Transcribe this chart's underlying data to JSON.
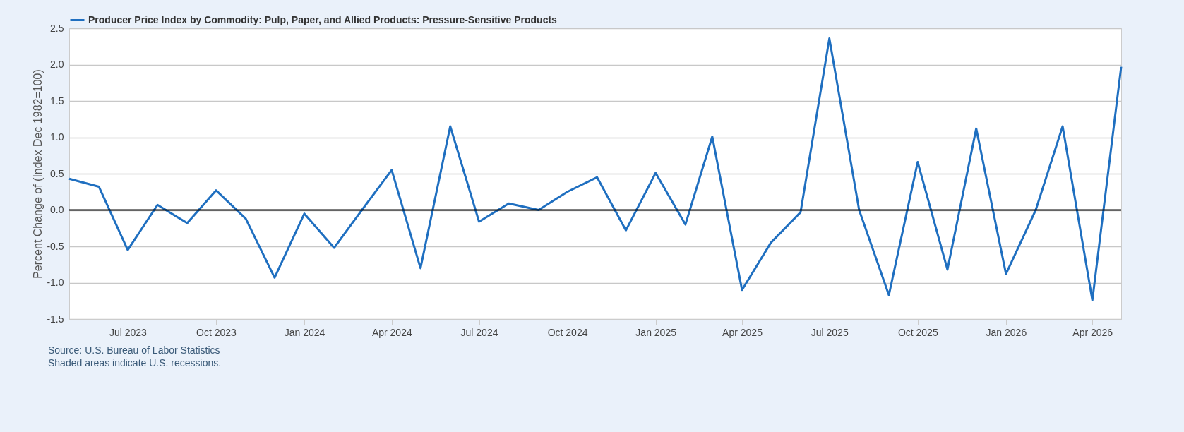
{
  "chart_data": {
    "type": "line",
    "ylabel": "Percent Change of (Index Dec 1982=100)",
    "x": [
      "2023-05",
      "2023-06",
      "2023-07",
      "2023-08",
      "2023-09",
      "2023-10",
      "2023-11",
      "2023-12",
      "2024-01",
      "2024-02",
      "2024-03",
      "2024-04",
      "2024-05",
      "2024-06",
      "2024-07",
      "2024-08",
      "2024-09",
      "2024-10",
      "2024-11",
      "2024-12",
      "2025-01",
      "2025-02",
      "2025-03",
      "2025-04",
      "2025-05",
      "2025-06",
      "2025-07",
      "2025-08",
      "2025-09",
      "2025-10",
      "2025-11",
      "2025-12",
      "2026-01",
      "2026-02",
      "2026-03",
      "2026-04",
      "2026-05"
    ],
    "series": [
      {
        "name": "Producer Price Index by Commodity: Pulp, Paper, and Allied Products: Pressure-Sensitive Products",
        "color": "#1f6fc0",
        "values": [
          0.43,
          0.32,
          -0.55,
          0.07,
          -0.18,
          0.27,
          -0.12,
          -0.93,
          -0.05,
          -0.52,
          0.0,
          0.55,
          -0.8,
          1.15,
          -0.16,
          0.09,
          0.0,
          0.25,
          0.45,
          -0.28,
          0.51,
          -0.2,
          1.01,
          -1.1,
          -0.45,
          -0.03,
          2.36,
          0.0,
          -1.17,
          0.66,
          -0.82,
          1.12,
          -0.88,
          0.0,
          1.15,
          -1.24,
          1.97
        ]
      }
    ],
    "xlim": [
      "2023-05",
      "2026-05"
    ],
    "xticks": [
      {
        "value": "2023-07",
        "label": "Jul 2023"
      },
      {
        "value": "2023-10",
        "label": "Oct 2023"
      },
      {
        "value": "2024-01",
        "label": "Jan 2024"
      },
      {
        "value": "2024-04",
        "label": "Apr 2024"
      },
      {
        "value": "2024-07",
        "label": "Jul 2024"
      },
      {
        "value": "2024-10",
        "label": "Oct 2024"
      },
      {
        "value": "2025-01",
        "label": "Jan 2025"
      },
      {
        "value": "2025-04",
        "label": "Apr 2025"
      },
      {
        "value": "2025-07",
        "label": "Jul 2025"
      },
      {
        "value": "2025-10",
        "label": "Oct 2025"
      },
      {
        "value": "2026-01",
        "label": "Jan 2026"
      },
      {
        "value": "2026-04",
        "label": "Apr 2026"
      }
    ],
    "ylim": [
      -1.5,
      2.5
    ],
    "yticks": [
      {
        "value": -1.5,
        "label": "-1.5"
      },
      {
        "value": -1,
        "label": "-1.0"
      },
      {
        "value": -0.5,
        "label": "-0.5"
      },
      {
        "value": 0,
        "label": "0.0"
      },
      {
        "value": 0.5,
        "label": "0.5"
      },
      {
        "value": 1,
        "label": "1.0"
      },
      {
        "value": 1.5,
        "label": "1.5"
      },
      {
        "value": 2,
        "label": "2.0"
      },
      {
        "value": 2.5,
        "label": "2.5"
      }
    ],
    "ref_lines": [
      {
        "axis": "y",
        "value": 0,
        "color": "#000000"
      }
    ],
    "grid": "y",
    "legend": "top",
    "marker": "none",
    "line_style": "solid",
    "annotations": [
      "Source: U.S. Bureau of Labor Statistics",
      "Shaded areas indicate U.S. recessions."
    ]
  }
}
